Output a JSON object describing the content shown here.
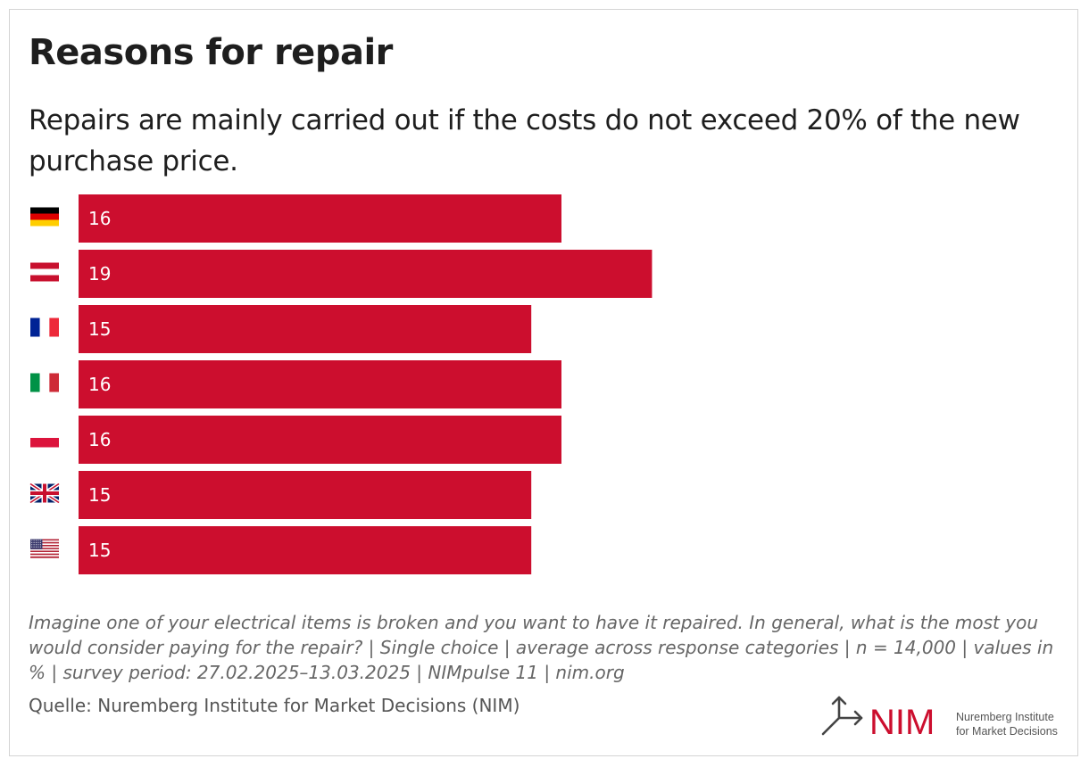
{
  "title": "Reasons for repair",
  "subtitle": "Repairs are mainly carried out if the costs do not exceed 20% of the new purchase price.",
  "footnote": "Imagine one of your electrical items is broken and you want to have it repaired. In general, what is the most you would consider paying for the repair? | Single choice | average across response categories | n = 14,000 | values in % | survey period: 27.02.2025–13.03.2025 | NIMpulse 11 | nim.org",
  "source": "Quelle: Nuremberg Institute for Market Decisions (NIM)",
  "logo": {
    "wordmark": "NIM",
    "line1": "Nuremberg Institute",
    "line2": "for Market Decisions",
    "icon": "arrow-split-icon"
  },
  "colors": {
    "bar": "#cc0e2e",
    "bar_label": "#ffffff",
    "text": "#1e1e1e"
  },
  "chart_data": {
    "type": "bar",
    "orientation": "horizontal",
    "unit": "%",
    "categories": [
      "germany-flag-icon",
      "austria-flag-icon",
      "france-flag-icon",
      "italy-flag-icon",
      "poland-flag-icon",
      "uk-flag-icon",
      "usa-flag-icon"
    ],
    "values": [
      16,
      19,
      15,
      16,
      16,
      15,
      15
    ],
    "xlim": [
      0,
      32
    ],
    "grid": false,
    "legend": "none"
  }
}
